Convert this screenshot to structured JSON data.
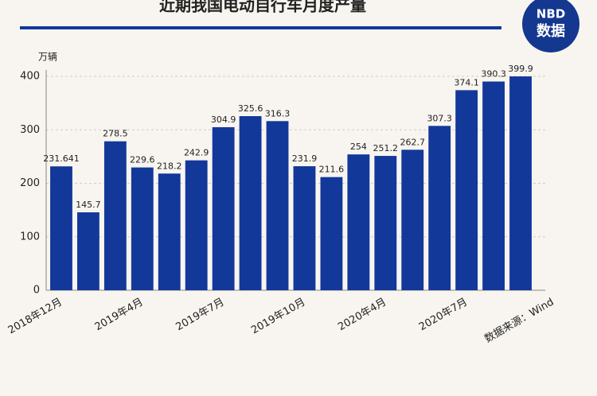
{
  "chart_data": {
    "type": "bar",
    "title": "近期我国电动自行车月度产量",
    "y_label": "万辆",
    "source": "数据来源：Wind",
    "logo": {
      "top": "NBD",
      "bottom": "数据"
    },
    "categories": [
      "2018年12月",
      null,
      null,
      "2019年4月",
      null,
      null,
      "2019年7月",
      null,
      null,
      "2019年10月",
      null,
      null,
      "2020年4月",
      null,
      null,
      "2020年7月",
      null,
      null
    ],
    "values": [
      231.641,
      145.7,
      278.5,
      229.6,
      218.2,
      242.9,
      304.9,
      325.6,
      316.3,
      231.9,
      211.6,
      254,
      251.2,
      262.7,
      307.3,
      374.1,
      390.3,
      399.9
    ],
    "color": "#12389a",
    "ylim": [
      0,
      400
    ],
    "yticks": [
      0,
      100,
      200,
      300,
      400
    ],
    "grid": true
  }
}
